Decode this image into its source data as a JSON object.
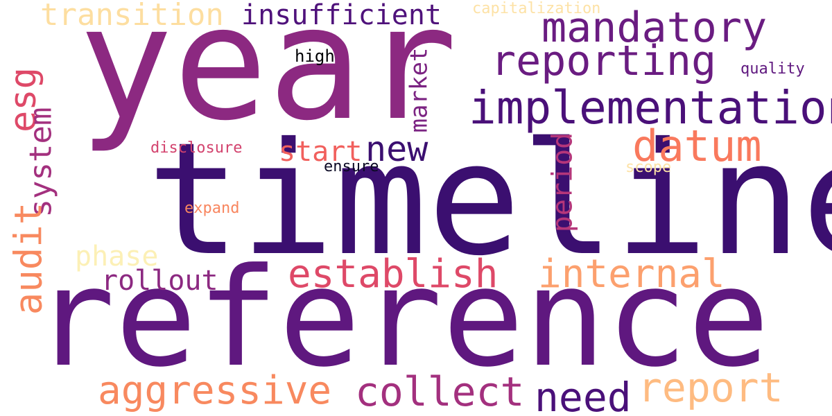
{
  "words": [
    {
      "text": "year",
      "color": "#8c2981",
      "orientation": "horizontal"
    },
    {
      "text": "timeline",
      "color": "#3b0f70",
      "orientation": "horizontal"
    },
    {
      "text": "reference",
      "color": "#5f187f",
      "orientation": "horizontal"
    },
    {
      "text": "implementation",
      "color": "#4a1079",
      "orientation": "horizontal"
    },
    {
      "text": "mandatory",
      "color": "#6a1c81",
      "orientation": "horizontal"
    },
    {
      "text": "reporting",
      "color": "#6a1c81",
      "orientation": "horizontal"
    },
    {
      "text": "insufficient",
      "color": "#4f127b",
      "orientation": "horizontal"
    },
    {
      "text": "transition",
      "color": "#fddea0",
      "orientation": "horizontal"
    },
    {
      "text": "capitalization",
      "color": "#fde2a6",
      "orientation": "horizontal"
    },
    {
      "text": "esg",
      "color": "#de4968",
      "orientation": "vertical"
    },
    {
      "text": "system",
      "color": "#a3307e",
      "orientation": "vertical"
    },
    {
      "text": "audit",
      "color": "#f8895f",
      "orientation": "vertical"
    },
    {
      "text": "market",
      "color": "#7b2382",
      "orientation": "vertical"
    },
    {
      "text": "period",
      "color": "#b5367a",
      "orientation": "vertical"
    },
    {
      "text": "high",
      "color": "#000004",
      "orientation": "horizontal"
    },
    {
      "text": "quality",
      "color": "#5f187f",
      "orientation": "horizontal"
    },
    {
      "text": "new",
      "color": "#3b0f70",
      "orientation": "horizontal"
    },
    {
      "text": "datum",
      "color": "#f9795d",
      "orientation": "horizontal"
    },
    {
      "text": "start",
      "color": "#f1605d",
      "orientation": "horizontal"
    },
    {
      "text": "disclosure",
      "color": "#d3436e",
      "orientation": "horizontal"
    },
    {
      "text": "ensure",
      "color": "#0b0924",
      "orientation": "horizontal"
    },
    {
      "text": "scope",
      "color": "#fde2a6",
      "orientation": "horizontal"
    },
    {
      "text": "expand",
      "color": "#f8865f",
      "orientation": "horizontal"
    },
    {
      "text": "phase",
      "color": "#fcf0b6",
      "orientation": "horizontal"
    },
    {
      "text": "rollout",
      "color": "#8c2981",
      "orientation": "horizontal"
    },
    {
      "text": "establish",
      "color": "#de4968",
      "orientation": "horizontal"
    },
    {
      "text": "internal",
      "color": "#fca06e",
      "orientation": "horizontal"
    },
    {
      "text": "aggressive",
      "color": "#f8895f",
      "orientation": "horizontal"
    },
    {
      "text": "collect",
      "color": "#a3307e",
      "orientation": "horizontal"
    },
    {
      "text": "need",
      "color": "#4a1079",
      "orientation": "horizontal"
    },
    {
      "text": "report",
      "color": "#febb81",
      "orientation": "horizontal"
    }
  ]
}
